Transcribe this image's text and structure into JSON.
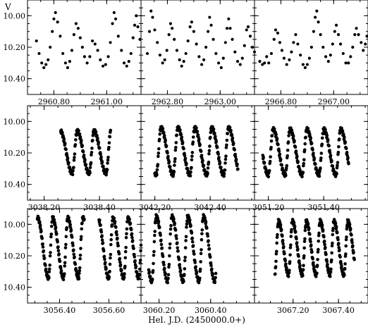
{
  "figure": {
    "ylabel": "V",
    "xlabel": "Hel. J.D. (2450000.0+)"
  },
  "chart_data": {
    "type": "scatter",
    "ylim": [
      10.5,
      9.9
    ],
    "yticks": [
      10.0,
      10.2,
      10.4
    ],
    "ytick_labels": [
      "10.00",
      "10.20",
      "10.40"
    ],
    "marker": {
      "shape": "filled circle",
      "color": "#000000"
    },
    "grid": false,
    "panels": [
      {
        "xlim": [
          2960.7,
          2961.13
        ],
        "xticks": [
          2960.8,
          2961.0
        ],
        "xtick_labels": [
          "2960.80",
          "2961.00"
        ],
        "points": [
          [
            2960.734,
            10.16
          ],
          [
            2960.744,
            10.24
          ],
          [
            2960.754,
            10.3
          ],
          [
            2960.762,
            10.33
          ],
          [
            2960.77,
            10.31
          ],
          [
            2960.778,
            10.28
          ],
          [
            2960.786,
            10.2
          ],
          [
            2960.794,
            10.1
          ],
          [
            2960.8,
            10.02
          ],
          [
            2960.806,
            9.98
          ],
          [
            2960.814,
            10.04
          ],
          [
            2960.824,
            10.13
          ],
          [
            2960.834,
            10.24
          ],
          [
            2960.844,
            10.3
          ],
          [
            2960.852,
            10.33
          ],
          [
            2960.86,
            10.29
          ],
          [
            2960.868,
            10.22
          ],
          [
            2960.876,
            10.12
          ],
          [
            2960.884,
            10.05
          ],
          [
            2960.892,
            10.08
          ],
          [
            2960.9,
            10.14
          ],
          [
            2960.908,
            10.2
          ],
          [
            2960.916,
            10.26
          ],
          [
            2960.926,
            10.3
          ],
          [
            2960.936,
            10.26
          ],
          [
            2960.946,
            10.16
          ],
          [
            2960.956,
            10.18
          ],
          [
            2960.966,
            10.22
          ],
          [
            2960.976,
            10.28
          ],
          [
            2960.986,
            10.32
          ],
          [
            2960.996,
            10.31
          ],
          [
            2961.006,
            10.26
          ],
          [
            2961.014,
            10.17
          ],
          [
            2961.022,
            10.05
          ],
          [
            2961.028,
            9.98
          ],
          [
            2961.034,
            10.02
          ],
          [
            2961.044,
            10.13
          ],
          [
            2961.056,
            10.22
          ],
          [
            2961.066,
            10.3
          ],
          [
            2961.076,
            10.32
          ],
          [
            2961.084,
            10.29
          ],
          [
            2961.092,
            10.24
          ],
          [
            2961.1,
            10.14
          ],
          [
            2961.106,
            10.06
          ],
          [
            2961.112,
            10.0
          ],
          [
            2961.118,
            10.07
          ],
          [
            2961.126,
            10.15
          ]
        ]
      },
      {
        "xlim": [
          2962.7,
          2963.13
        ],
        "xticks": [
          2962.8,
          2963.0
        ],
        "xtick_labels": [
          "2962.80",
          "2963.00"
        ],
        "points": [
          [
            2962.724,
            10.24
          ],
          [
            2962.732,
            10.1
          ],
          [
            2962.738,
            9.97
          ],
          [
            2962.744,
            10.01
          ],
          [
            2962.752,
            10.09
          ],
          [
            2962.762,
            10.17
          ],
          [
            2962.772,
            10.25
          ],
          [
            2962.782,
            10.3
          ],
          [
            2962.79,
            10.28
          ],
          [
            2962.798,
            10.22
          ],
          [
            2962.806,
            10.12
          ],
          [
            2962.812,
            10.05
          ],
          [
            2962.818,
            10.08
          ],
          [
            2962.826,
            10.15
          ],
          [
            2962.836,
            10.22
          ],
          [
            2962.846,
            10.28
          ],
          [
            2962.854,
            10.32
          ],
          [
            2962.862,
            10.29
          ],
          [
            2962.87,
            10.24
          ],
          [
            2962.878,
            10.16
          ],
          [
            2962.886,
            10.07
          ],
          [
            2962.892,
            10.04
          ],
          [
            2962.9,
            10.1
          ],
          [
            2962.91,
            10.18
          ],
          [
            2962.92,
            10.26
          ],
          [
            2962.93,
            10.31
          ],
          [
            2962.938,
            10.28
          ],
          [
            2962.946,
            10.2
          ],
          [
            2962.954,
            10.1
          ],
          [
            2962.96,
            10.01
          ],
          [
            2962.966,
            10.06
          ],
          [
            2962.974,
            10.15
          ],
          [
            2962.984,
            10.24
          ],
          [
            2962.994,
            10.3
          ],
          [
            2963.004,
            10.33
          ],
          [
            2963.012,
            10.27
          ],
          [
            2963.02,
            10.17
          ],
          [
            2963.026,
            10.08
          ],
          [
            2963.032,
            10.02
          ],
          [
            2963.038,
            10.08
          ],
          [
            2963.046,
            10.15
          ],
          [
            2963.056,
            10.23
          ],
          [
            2963.066,
            10.29
          ],
          [
            2963.076,
            10.31
          ],
          [
            2963.084,
            10.27
          ],
          [
            2963.092,
            10.19
          ],
          [
            2963.1,
            10.09
          ],
          [
            2963.106,
            10.07
          ],
          [
            2963.114,
            10.13
          ],
          [
            2963.122,
            10.2
          ],
          [
            2963.13,
            10.23
          ]
        ]
      },
      {
        "xlim": [
          2966.7,
          2967.13
        ],
        "xticks": [
          2966.8,
          2967.0
        ],
        "xtick_labels": [
          "2966.80",
          "2967.00"
        ],
        "points": [
          [
            2966.72,
            10.29
          ],
          [
            2966.73,
            10.31
          ],
          [
            2966.738,
            10.3
          ],
          [
            2966.746,
            10.26
          ],
          [
            2966.754,
            10.3
          ],
          [
            2966.764,
            10.24
          ],
          [
            2966.774,
            10.15
          ],
          [
            2966.78,
            10.09
          ],
          [
            2966.788,
            10.11
          ],
          [
            2966.796,
            10.17
          ],
          [
            2966.804,
            10.22
          ],
          [
            2966.812,
            10.27
          ],
          [
            2966.822,
            10.31
          ],
          [
            2966.832,
            10.28
          ],
          [
            2966.84,
            10.23
          ],
          [
            2966.848,
            10.17
          ],
          [
            2966.856,
            10.12
          ],
          [
            2966.864,
            10.18
          ],
          [
            2966.874,
            10.25
          ],
          [
            2966.884,
            10.31
          ],
          [
            2966.892,
            10.33
          ],
          [
            2966.9,
            10.31
          ],
          [
            2966.908,
            10.27
          ],
          [
            2966.916,
            10.2
          ],
          [
            2966.924,
            10.1
          ],
          [
            2966.93,
            10.01
          ],
          [
            2966.936,
            9.97
          ],
          [
            2966.942,
            10.04
          ],
          [
            2966.95,
            10.12
          ],
          [
            2966.96,
            10.2
          ],
          [
            2966.97,
            10.26
          ],
          [
            2966.98,
            10.29
          ],
          [
            2966.988,
            10.25
          ],
          [
            2966.996,
            10.18
          ],
          [
            2967.004,
            10.1
          ],
          [
            2967.01,
            10.06
          ],
          [
            2967.018,
            10.12
          ],
          [
            2967.026,
            10.18
          ],
          [
            2967.036,
            10.24
          ],
          [
            2967.046,
            10.3
          ],
          [
            2967.056,
            10.3
          ],
          [
            2967.064,
            10.26
          ],
          [
            2967.072,
            10.2
          ],
          [
            2967.08,
            10.12
          ],
          [
            2967.086,
            10.08
          ],
          [
            2967.094,
            10.12
          ],
          [
            2967.104,
            10.17
          ],
          [
            2967.112,
            10.22
          ],
          [
            2967.12,
            10.18
          ],
          [
            2967.126,
            10.13
          ]
        ]
      }
    ],
    "dense_panels": [
      {
        "xlim": [
          3038.14,
          3038.55
        ],
        "xticks": [
          3038.2,
          3038.4
        ],
        "xtick_labels": [
          "3038.20",
          "3038.40"
        ],
        "segments": [
          [
            3038.26,
            3038.44
          ]
        ],
        "epoch": 3038.302,
        "period": 0.061,
        "amplitude": [
          10.06,
          10.33
        ]
      },
      {
        "xlim": [
          3042.15,
          3042.56
        ],
        "xticks": [
          3042.2,
          3042.4
        ],
        "xtick_labels": [
          "3042.20",
          "3042.40"
        ],
        "segments": [
          [
            3042.2,
            3042.5
          ]
        ],
        "epoch": 3042.266,
        "period": 0.061,
        "amplitude": [
          10.04,
          10.34
        ]
      },
      {
        "xlim": [
          3051.15,
          3051.56
        ],
        "xticks": [
          3051.2,
          3051.4
        ],
        "xtick_labels": [
          "3051.20",
          "3051.40"
        ],
        "segments": [
          [
            3051.18,
            3051.49
          ]
        ],
        "epoch": 3051.2,
        "period": 0.061,
        "amplitude": [
          10.05,
          10.34
        ]
      },
      {
        "xlim": [
          3056.27,
          3056.73
        ],
        "xticks": [
          3056.4,
          3056.6
        ],
        "xtick_labels": [
          "3056.40",
          "3056.60"
        ],
        "segments": [
          [
            3056.31,
            3056.5
          ],
          [
            3056.56,
            3056.73
          ]
        ],
        "epoch": 3056.355,
        "period": 0.061,
        "amplitude": [
          9.96,
          10.34
        ]
      },
      {
        "xlim": [
          3060.13,
          3060.57
        ],
        "xticks": [
          3060.2,
          3060.4
        ],
        "xtick_labels": [
          "3060.20",
          "3060.40"
        ],
        "segments": [
          [
            3060.16,
            3060.42
          ]
        ],
        "epoch": 3060.233,
        "period": 0.061,
        "amplitude": [
          9.95,
          10.36
        ]
      },
      {
        "xlim": [
          3067.03,
          3067.53
        ],
        "xticks": [
          3067.2,
          3067.4
        ],
        "xtick_labels": [
          "3067.20",
          "3067.40"
        ],
        "segments": [
          [
            3067.12,
            3067.47
          ]
        ],
        "epoch": 3067.18,
        "period": 0.061,
        "amplitude": [
          9.98,
          10.32
        ]
      }
    ]
  }
}
